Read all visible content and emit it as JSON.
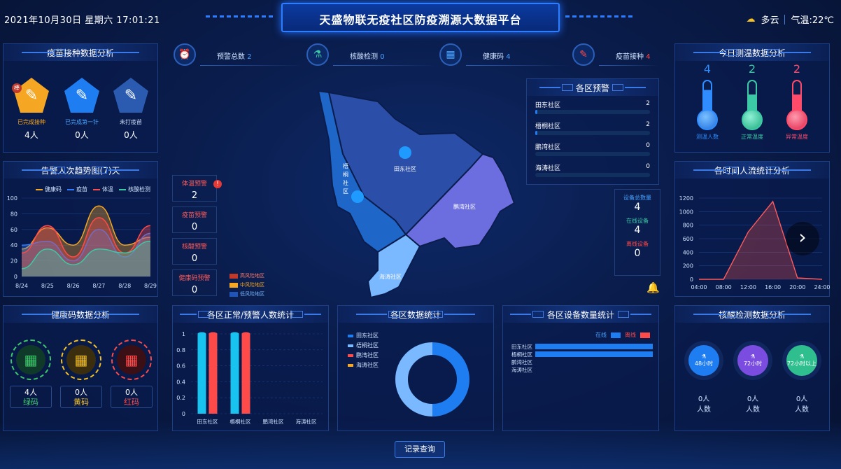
{
  "header": {
    "datetime": "2021年10月30日   星期六   17:01:21",
    "title": "天盛物联无疫社区防疫溯源大数据平台",
    "weather": "多云",
    "temperature": "气温:22℃"
  },
  "vaccine": {
    "title": "疫苗接种数据分析",
    "badge": "棒",
    "items": [
      {
        "label": "已完成接种",
        "value": "4人",
        "color": "#f5a623"
      },
      {
        "label": "已完成第一针",
        "value": "0人",
        "color": "#1f7df2"
      },
      {
        "label": "未打疫苗",
        "value": "0人",
        "color": "#2a5bb0"
      }
    ]
  },
  "trend": {
    "title": "告警人次趋势图(7)天",
    "legend": [
      {
        "name": "健康码",
        "color": "#f5a623"
      },
      {
        "name": "疫苗",
        "color": "#2f7dff"
      },
      {
        "name": "体温",
        "color": "#ff4a4a"
      },
      {
        "name": "核酸检测",
        "color": "#3cc9a5"
      }
    ],
    "yticks": [
      "100",
      "80",
      "60",
      "40",
      "20",
      "0"
    ],
    "xticks": [
      "8/24",
      "8/25",
      "8/26",
      "8/27",
      "8/28",
      "8/29"
    ]
  },
  "health_code": {
    "title": "健康码数据分析",
    "items": [
      {
        "value": "4人",
        "label": "绿码",
        "color": "#3cc96b"
      },
      {
        "value": "0人",
        "label": "黄码",
        "color": "#f5c023"
      },
      {
        "value": "0人",
        "label": "红码",
        "color": "#ff4a4a"
      }
    ]
  },
  "stats_top": [
    {
      "label": "预警总数",
      "value": "2",
      "color": "#4aa3ff",
      "icon": "alarm-icon"
    },
    {
      "label": "核酸检测",
      "value": "0",
      "color": "#4aa3ff",
      "icon": "test-tube-icon"
    },
    {
      "label": "健康码",
      "value": "4",
      "color": "#4aa3ff",
      "icon": "qr-code-icon"
    },
    {
      "label": "疫苗接种",
      "value": "4",
      "color": "#ff4a4a",
      "icon": "syringe-icon"
    }
  ],
  "alarms": [
    {
      "label": "体温预警",
      "value": "2"
    },
    {
      "label": "疫苗预警",
      "value": "0"
    },
    {
      "label": "核酸预警",
      "value": "0"
    },
    {
      "label": "健康码预警",
      "value": "0"
    }
  ],
  "map": {
    "regions": [
      "田东社区",
      "梧桐社区",
      "鹏湾社区",
      "海涛社区"
    ],
    "legend": [
      {
        "name": "高风险地区",
        "color": "#c0392b"
      },
      {
        "name": "中风险地区",
        "color": "#f5a623"
      },
      {
        "name": "低风险地区",
        "color": "#1f55b8"
      }
    ]
  },
  "district_warning": {
    "title": "各区预警",
    "rows": [
      {
        "name": "田东社区",
        "value": 2,
        "max": 100
      },
      {
        "name": "梧桐社区",
        "value": 2,
        "max": 100
      },
      {
        "name": "鹏湾社区",
        "value": 0,
        "max": 100
      },
      {
        "name": "海涛社区",
        "value": 0,
        "max": 100
      }
    ]
  },
  "equipment": {
    "items": [
      {
        "label": "设备总数量",
        "value": "4",
        "color": "#4aa3ff"
      },
      {
        "label": "在线设备",
        "value": "4",
        "color": "#3cc9a5"
      },
      {
        "label": "离线设备",
        "value": "0",
        "color": "#ff4a4a"
      }
    ]
  },
  "temperature": {
    "title": "今日测温数据分析",
    "items": [
      {
        "value": "4",
        "label": "测温人数",
        "color": "#2f8dff"
      },
      {
        "value": "2",
        "label": "正常温度",
        "color": "#3cc9a5"
      },
      {
        "value": "2",
        "label": "异常温度",
        "color": "#ff4a6a"
      }
    ]
  },
  "flow": {
    "title": "各时间人流统计分析",
    "yticks": [
      "1200",
      "1000",
      "800",
      "600",
      "400",
      "200",
      "0"
    ],
    "xticks": [
      "04:00",
      "08:00",
      "12:00",
      "16:00",
      "20:00",
      "24:00"
    ]
  },
  "nucleic": {
    "title": "核酸检测数据分析",
    "items": [
      {
        "label": "48小时",
        "value": "0人",
        "unit": "人数",
        "color": "#1f7df2"
      },
      {
        "label": "72小时",
        "value": "0人",
        "unit": "人数",
        "color": "#7a4de0"
      },
      {
        "label": "72小时以上",
        "value": "0人",
        "unit": "人数",
        "color": "#2fbf8f"
      }
    ]
  },
  "bottom": {
    "normal_title": "各区正常/预警人数统计",
    "stats_title": "各区数据统计",
    "device_title": "各区设备数量统计",
    "online_label": "在线",
    "offline_label": "离线",
    "record_button": "记录查询",
    "bar_yticks": [
      "1",
      "0.8",
      "0.6",
      "0.4",
      "0.2",
      "0"
    ],
    "districts": [
      "田东社区",
      "梧桐社区",
      "鹏湾社区",
      "海涛社区"
    ],
    "donut_legend": [
      {
        "name": "田东社区",
        "color": "#1f7df2"
      },
      {
        "name": "梧桐社区",
        "color": "#7ab8ff"
      },
      {
        "name": "鹏湾社区",
        "color": "#ff4a4a"
      },
      {
        "name": "海涛社区",
        "color": "#f5a623"
      }
    ]
  },
  "chart_data": [
    {
      "type": "area",
      "title": "告警人次趋势图(7)天",
      "categories": [
        "8/24",
        "8/25",
        "8/26",
        "8/27",
        "8/28",
        "8/29"
      ],
      "ylim": [
        0,
        100
      ],
      "series": [
        {
          "name": "健康码",
          "values": [
            35,
            62,
            40,
            90,
            40,
            50
          ]
        },
        {
          "name": "疫苗",
          "values": [
            40,
            45,
            20,
            60,
            25,
            55
          ]
        },
        {
          "name": "体温",
          "values": [
            30,
            65,
            25,
            75,
            30,
            65
          ]
        },
        {
          "name": "核酸检测",
          "values": [
            10,
            35,
            15,
            35,
            30,
            45
          ]
        }
      ]
    },
    {
      "type": "area",
      "title": "各时间人流统计分析",
      "x": [
        "04:00",
        "08:00",
        "12:00",
        "16:00",
        "20:00",
        "24:00"
      ],
      "ylim": [
        0,
        1200
      ],
      "series": [
        {
          "name": "",
          "values": [
            0,
            0,
            700,
            1150,
            20,
            0
          ]
        }
      ]
    },
    {
      "type": "bar",
      "title": "各区正常/预警人数统计",
      "categories": [
        "田东社区",
        "梧桐社区",
        "鹏湾社区",
        "海涛社区"
      ],
      "ylim": [
        0,
        1
      ],
      "series": [
        {
          "name": "",
          "values": [
            1,
            1,
            0,
            0
          ]
        },
        {
          "name": "",
          "values": [
            1,
            1,
            0,
            0
          ]
        }
      ]
    },
    {
      "type": "pie",
      "title": "各区数据统计",
      "categories": [
        "田东社区",
        "梧桐社区",
        "鹏湾社区",
        "海涛社区"
      ],
      "values": [
        2,
        2,
        0,
        0
      ]
    },
    {
      "type": "bar",
      "title": "各区设备数量统计",
      "categories": [
        "田东社区",
        "梧桐社区",
        "鹏湾社区",
        "海涛社区"
      ],
      "series": [
        {
          "name": "在线",
          "values": [
            2,
            2,
            0,
            0
          ]
        },
        {
          "name": "离线",
          "values": [
            0,
            0,
            0,
            0
          ]
        }
      ]
    }
  ]
}
